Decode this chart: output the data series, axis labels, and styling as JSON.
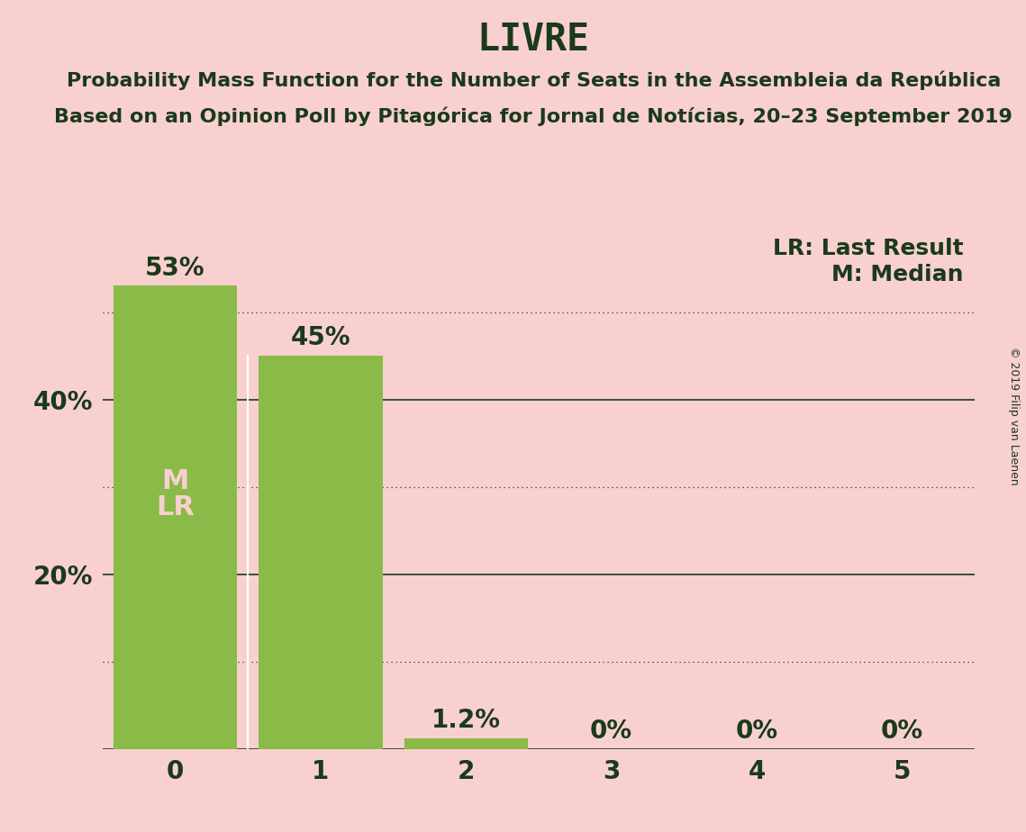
{
  "title": "LIVRE",
  "subtitle_line1": "Probability Mass Function for the Number of Seats in the Assembleia da República",
  "subtitle_line2": "Based on an Opinion Poll by Pitagórica for Jornal de Notícias, 20–23 September 2019",
  "copyright": "© 2019 Filip van Laenen",
  "categories": [
    0,
    1,
    2,
    3,
    4,
    5
  ],
  "values": [
    0.53,
    0.45,
    0.012,
    0.0,
    0.0,
    0.0
  ],
  "bar_color": "#8aba47",
  "background_color": "#f9d0d0",
  "text_color": "#1a3a1a",
  "bar_label_color_dark": "#1a3a1a",
  "bar_label_color_light": "#f9d0d0",
  "bar_pct_labels": [
    "53%",
    "45%",
    "1.2%",
    "0%",
    "0%",
    "0%"
  ],
  "legend_text1": "LR: Last Result",
  "legend_text2": "M: Median",
  "yticks_solid": [
    0.0,
    0.2,
    0.4
  ],
  "yticks_dotted": [
    0.1,
    0.3,
    0.5
  ],
  "ylim": [
    0,
    0.6
  ],
  "bar_width": 0.85,
  "title_fontsize": 30,
  "subtitle_fontsize": 16,
  "tick_label_fontsize": 20,
  "bar_label_fontsize": 20,
  "annotation_fontsize": 22,
  "legend_fontsize": 18,
  "copyright_fontsize": 9
}
